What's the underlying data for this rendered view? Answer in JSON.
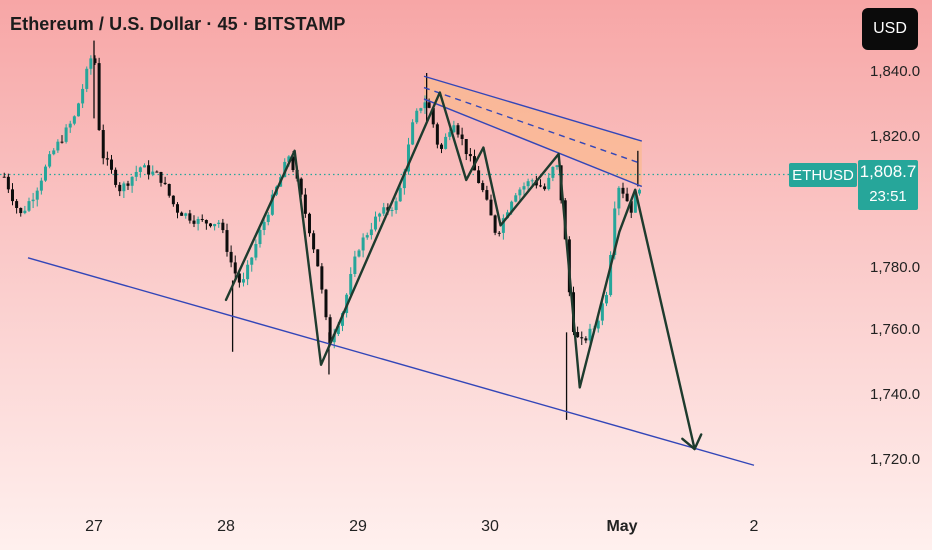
{
  "chart_data": {
    "type": "candlestick",
    "title": "Ethereum / U.S. Dollar · 45 · BITSTAMP",
    "currency": "USD",
    "symbol": "ETHUSD",
    "last_price": "1,808.7",
    "countdown": "23:51",
    "y_axis": {
      "range": [
        1714,
        1850
      ],
      "ticks": [
        "1,840.0",
        "1,820.0",
        "1,780.0",
        "1,760.0",
        "1,740.0",
        "1,720.0"
      ]
    },
    "x_axis": {
      "ticks": [
        {
          "label": "27",
          "pos": 0.0
        },
        {
          "label": "28",
          "pos": 1.0
        },
        {
          "label": "29",
          "pos": 2.0
        },
        {
          "label": "30",
          "pos": 3.0
        },
        {
          "label": "May",
          "pos": 4.0
        },
        {
          "label": "2",
          "pos": 5.0
        }
      ]
    },
    "colors": {
      "up": "#26a69a",
      "down": "#0d0d0d",
      "channel": "#3346b8",
      "zone": "#f9b990",
      "pattern": "#1e3b2e",
      "last_price_line": "#26a69a"
    },
    "price_path": [
      [
        -0.68,
        1808
      ],
      [
        -0.56,
        1796
      ],
      [
        -0.45,
        1803
      ],
      [
        -0.32,
        1815
      ],
      [
        -0.15,
        1826
      ],
      [
        0.0,
        1848
      ],
      [
        0.05,
        1816
      ],
      [
        0.2,
        1804
      ],
      [
        0.35,
        1811
      ],
      [
        0.5,
        1808
      ],
      [
        0.62,
        1798
      ],
      [
        0.8,
        1794
      ],
      [
        0.95,
        1794
      ],
      [
        1.05,
        1780
      ],
      [
        1.12,
        1774
      ],
      [
        1.25,
        1790
      ],
      [
        1.48,
        1815
      ],
      [
        1.62,
        1794
      ],
      [
        1.7,
        1780
      ],
      [
        1.78,
        1757
      ],
      [
        1.88,
        1766
      ],
      [
        2.0,
        1786
      ],
      [
        2.15,
        1796
      ],
      [
        2.3,
        1800
      ],
      [
        2.42,
        1825
      ],
      [
        2.5,
        1832
      ],
      [
        2.55,
        1828
      ],
      [
        2.62,
        1815
      ],
      [
        2.72,
        1826
      ],
      [
        2.82,
        1816
      ],
      [
        2.95,
        1803
      ],
      [
        3.05,
        1790
      ],
      [
        3.18,
        1803
      ],
      [
        3.32,
        1807
      ],
      [
        3.42,
        1804
      ],
      [
        3.5,
        1813
      ],
      [
        3.55,
        1798
      ],
      [
        3.62,
        1763
      ],
      [
        3.68,
        1756
      ],
      [
        3.8,
        1762
      ],
      [
        3.9,
        1775
      ],
      [
        3.93,
        1797
      ],
      [
        3.98,
        1806
      ],
      [
        4.07,
        1798
      ],
      [
        4.16,
        1808.7
      ]
    ],
    "spike_wicks": [
      [
        0.0,
        1826,
        1850
      ],
      [
        1.05,
        1776,
        1754
      ],
      [
        1.78,
        1760,
        1747
      ],
      [
        2.52,
        1825,
        1840
      ],
      [
        3.58,
        1760,
        1733
      ],
      [
        4.12,
        1805,
        1816
      ]
    ],
    "channel_lines": [
      {
        "style": "solid",
        "from": [
          -0.5,
          1783
        ],
        "to": [
          5.0,
          1719
        ]
      },
      {
        "style": "solid",
        "from": [
          2.5,
          1839
        ],
        "to": [
          4.15,
          1819
        ]
      },
      {
        "style": "solid",
        "from": [
          2.5,
          1832
        ],
        "to": [
          4.15,
          1805
        ]
      },
      {
        "style": "dashed",
        "from": [
          2.5,
          1835.5
        ],
        "to": [
          4.15,
          1812
        ]
      }
    ],
    "pattern_path": [
      [
        1.0,
        1770
      ],
      [
        1.52,
        1816
      ],
      [
        1.72,
        1750
      ],
      [
        2.62,
        1834
      ],
      [
        2.82,
        1807
      ],
      [
        2.95,
        1817
      ],
      [
        3.08,
        1793
      ],
      [
        3.52,
        1815
      ],
      [
        3.68,
        1743
      ],
      [
        3.98,
        1791
      ],
      [
        4.1,
        1804
      ],
      [
        4.55,
        1724
      ]
    ]
  }
}
